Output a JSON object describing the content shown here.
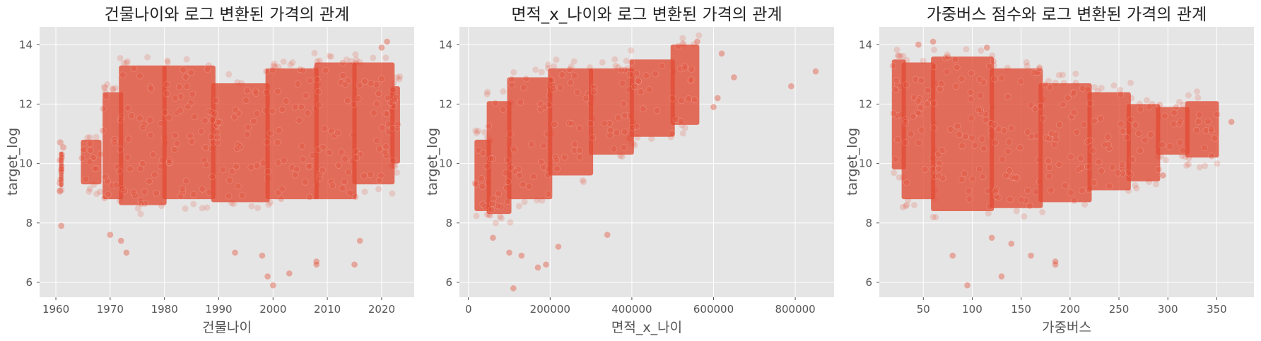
{
  "chart_data": [
    {
      "type": "scatter",
      "title": "건물나이와 로그 변환된 가격의 관계",
      "xlabel": "건물나이",
      "ylabel": "target_log",
      "xlim": [
        1957,
        2026
      ],
      "ylim": [
        5.5,
        14.6
      ],
      "xticks": [
        1960,
        1970,
        1980,
        1990,
        2000,
        2010,
        2020
      ],
      "yticks": [
        6,
        8,
        10,
        12,
        14
      ],
      "grid": true,
      "series": [
        {
          "color": "#e24a33",
          "bands": [
            {
              "x": [
                1961,
                1961
              ],
              "y": [
                9.2,
                10.4
              ]
            },
            {
              "x": [
                1965,
                1968
              ],
              "y": [
                9.3,
                10.8
              ]
            },
            {
              "x": [
                1969,
                1972
              ],
              "y": [
                8.8,
                12.4
              ]
            },
            {
              "x": [
                1972,
                1980
              ],
              "y": [
                8.6,
                13.3
              ]
            },
            {
              "x": [
                1980,
                1989
              ],
              "y": [
                8.8,
                13.3
              ]
            },
            {
              "x": [
                1989,
                1999
              ],
              "y": [
                8.7,
                12.7
              ]
            },
            {
              "x": [
                1999,
                2008
              ],
              "y": [
                8.8,
                13.2
              ]
            },
            {
              "x": [
                2008,
                2015
              ],
              "y": [
                8.8,
                13.4
              ]
            },
            {
              "x": [
                2015,
                2022
              ],
              "y": [
                9.3,
                13.4
              ]
            },
            {
              "x": [
                2022,
                2023
              ],
              "y": [
                10.0,
                12.6
              ]
            }
          ],
          "points": [
            {
              "x": 1961,
              "y": 7.9
            },
            {
              "x": 1970,
              "y": 7.6
            },
            {
              "x": 1973,
              "y": 7.0
            },
            {
              "x": 1972,
              "y": 7.4
            },
            {
              "x": 1993,
              "y": 7.0
            },
            {
              "x": 1998,
              "y": 6.9
            },
            {
              "x": 1999,
              "y": 6.2
            },
            {
              "x": 2000,
              "y": 5.9
            },
            {
              "x": 2003,
              "y": 6.3
            },
            {
              "x": 2008,
              "y": 6.7
            },
            {
              "x": 2008,
              "y": 6.6
            },
            {
              "x": 2015,
              "y": 6.6
            },
            {
              "x": 2016,
              "y": 7.4
            },
            {
              "x": 2021,
              "y": 14.1
            },
            {
              "x": 2020,
              "y": 13.9
            }
          ]
        }
      ]
    },
    {
      "type": "scatter",
      "title": "면적_x_나이와 로그 변환된 가격의 관계",
      "xlabel": "면적_x_나이",
      "ylabel": "target_log",
      "xlim": [
        -22000,
        895000
      ],
      "ylim": [
        5.5,
        14.6
      ],
      "xticks": [
        0,
        200000,
        400000,
        600000,
        800000
      ],
      "yticks": [
        6,
        8,
        10,
        12,
        14
      ],
      "grid": true,
      "series": [
        {
          "color": "#e24a33",
          "bands": [
            {
              "x": [
                20000,
                50000
              ],
              "y": [
                8.4,
                10.8
              ]
            },
            {
              "x": [
                50000,
                100000
              ],
              "y": [
                8.3,
                12.1
              ]
            },
            {
              "x": [
                100000,
                200000
              ],
              "y": [
                8.8,
                12.9
              ]
            },
            {
              "x": [
                200000,
                300000
              ],
              "y": [
                9.6,
                13.2
              ]
            },
            {
              "x": [
                300000,
                400000
              ],
              "y": [
                10.3,
                13.2
              ]
            },
            {
              "x": [
                400000,
                500000
              ],
              "y": [
                10.9,
                13.5
              ]
            },
            {
              "x": [
                500000,
                560000
              ],
              "y": [
                11.3,
                14.0
              ]
            }
          ],
          "points": [
            {
              "x": 110000,
              "y": 5.8
            },
            {
              "x": 170000,
              "y": 6.5
            },
            {
              "x": 190000,
              "y": 6.6
            },
            {
              "x": 100000,
              "y": 7.0
            },
            {
              "x": 130000,
              "y": 6.9
            },
            {
              "x": 220000,
              "y": 7.2
            },
            {
              "x": 340000,
              "y": 7.6
            },
            {
              "x": 60000,
              "y": 7.5
            },
            {
              "x": 600000,
              "y": 11.9
            },
            {
              "x": 610000,
              "y": 12.2
            },
            {
              "x": 620000,
              "y": 13.7
            },
            {
              "x": 650000,
              "y": 12.9
            },
            {
              "x": 790000,
              "y": 12.6
            },
            {
              "x": 850000,
              "y": 13.1
            },
            {
              "x": 560000,
              "y": 14.1
            }
          ]
        }
      ]
    },
    {
      "type": "scatter",
      "title": "가중버스 점수와 로그 변환된 가격의 관계",
      "xlabel": "가중버스",
      "ylabel": "target_log",
      "xlim": [
        5,
        388
      ],
      "ylim": [
        5.5,
        14.6
      ],
      "xticks": [
        50,
        100,
        150,
        200,
        250,
        300,
        350
      ],
      "yticks": [
        6,
        8,
        10,
        12,
        14
      ],
      "grid": true,
      "series": [
        {
          "color": "#e24a33",
          "bands": [
            {
              "x": [
                20,
                30
              ],
              "y": [
                9.8,
                13.5
              ]
            },
            {
              "x": [
                30,
                60
              ],
              "y": [
                8.8,
                13.4
              ]
            },
            {
              "x": [
                60,
                120
              ],
              "y": [
                8.4,
                13.6
              ]
            },
            {
              "x": [
                120,
                170
              ],
              "y": [
                8.5,
                13.2
              ]
            },
            {
              "x": [
                170,
                220
              ],
              "y": [
                8.7,
                12.7
              ]
            },
            {
              "x": [
                220,
                260
              ],
              "y": [
                9.1,
                12.4
              ]
            },
            {
              "x": [
                260,
                290
              ],
              "y": [
                9.4,
                12.0
              ]
            },
            {
              "x": [
                290,
                320
              ],
              "y": [
                10.3,
                11.9
              ]
            },
            {
              "x": [
                320,
                350
              ],
              "y": [
                10.2,
                12.1
              ]
            }
          ],
          "points": [
            {
              "x": 95,
              "y": 5.9
            },
            {
              "x": 80,
              "y": 6.9
            },
            {
              "x": 160,
              "y": 6.9
            },
            {
              "x": 185,
              "y": 6.6
            },
            {
              "x": 185,
              "y": 6.7
            },
            {
              "x": 120,
              "y": 7.5
            },
            {
              "x": 130,
              "y": 6.2
            },
            {
              "x": 140,
              "y": 7.3
            },
            {
              "x": 365,
              "y": 11.4
            },
            {
              "x": 45,
              "y": 14.0
            },
            {
              "x": 60,
              "y": 14.1
            },
            {
              "x": 115,
              "y": 13.9
            },
            {
              "x": 295,
              "y": 9.6
            }
          ]
        }
      ]
    }
  ]
}
